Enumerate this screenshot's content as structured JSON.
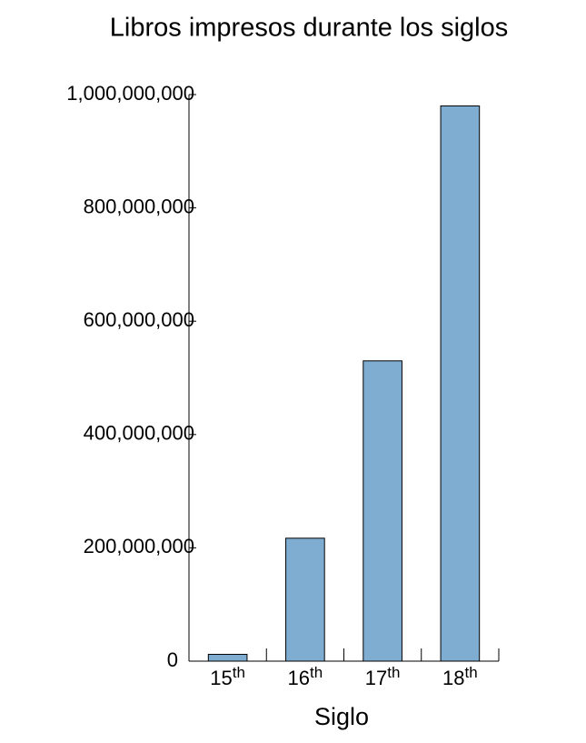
{
  "chart_data": {
    "type": "bar",
    "title": "Libros impresos durante los siglos",
    "x_label": "Siglo",
    "categories": [
      "15th",
      "16th",
      "17th",
      "18th"
    ],
    "values": [
      12000000,
      217000000,
      530000000,
      980000000
    ],
    "color": "#7fadd2",
    "ylim": [
      0,
      1000000000
    ],
    "yticks": [
      0,
      {
        "value": 200000000,
        "label": "200,000,000"
      },
      {
        "value": 400000000,
        "label": "400,000,000"
      },
      {
        "value": 600000000,
        "label": "600,000,000"
      },
      {
        "value": 800000000,
        "label": "800,000,000"
      },
      {
        "value": 1000000000,
        "label": "1,000,000,000"
      }
    ],
    "grid": false
  }
}
